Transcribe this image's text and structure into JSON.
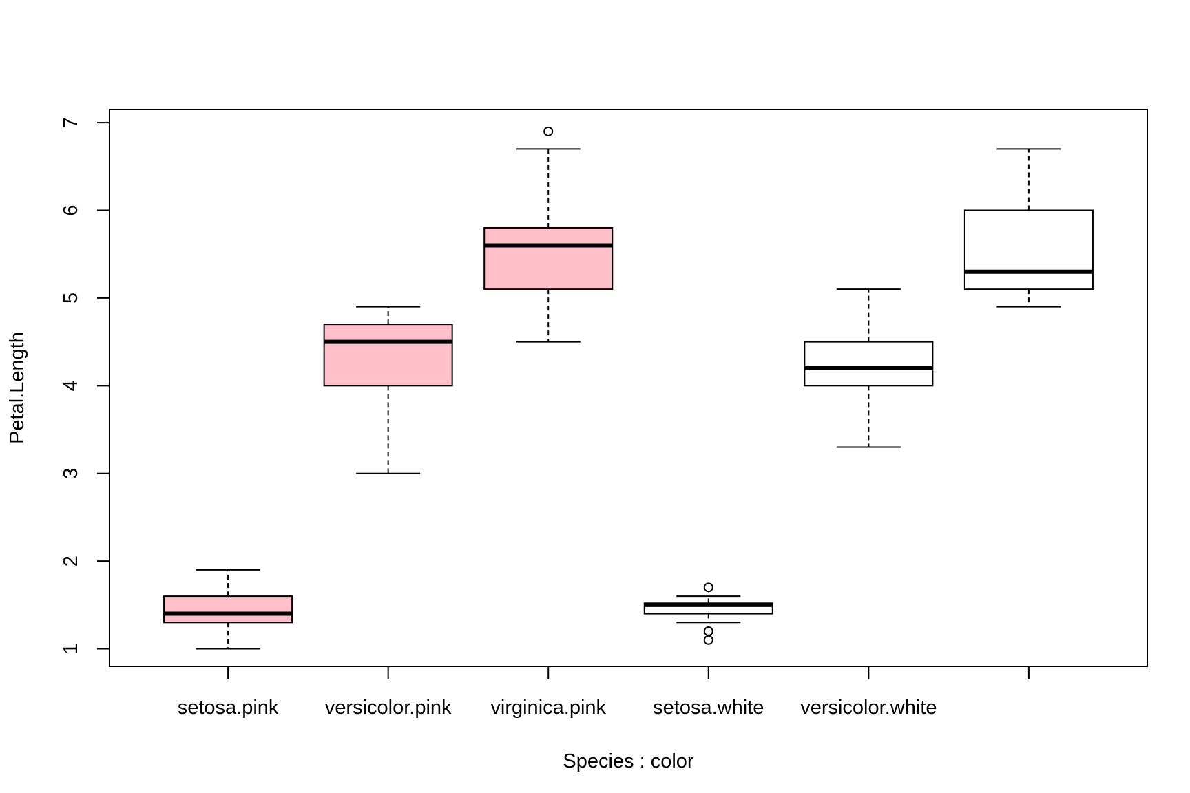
{
  "chart_data": {
    "type": "boxplot",
    "title": "",
    "xlabel": "Species : color",
    "ylabel": "Petal.Length",
    "ylim": [
      0.8,
      7.15
    ],
    "yticks": [
      1,
      2,
      3,
      4,
      5,
      6,
      7
    ],
    "grid": false,
    "legend": "none",
    "categories": [
      "setosa.pink",
      "versicolor.pink",
      "virginica.pink",
      "setosa.white",
      "versicolor.white",
      ""
    ],
    "boxes": [
      {
        "label": "setosa.pink",
        "fill": "#ffc0cb",
        "whisker_low": 1.0,
        "q1": 1.3,
        "median": 1.4,
        "q3": 1.6,
        "whisker_high": 1.9,
        "outliers": []
      },
      {
        "label": "versicolor.pink",
        "fill": "#ffc0cb",
        "whisker_low": 3.0,
        "q1": 4.0,
        "median": 4.5,
        "q3": 4.7,
        "whisker_high": 4.9,
        "outliers": []
      },
      {
        "label": "virginica.pink",
        "fill": "#ffc0cb",
        "whisker_low": 4.5,
        "q1": 5.1,
        "median": 5.6,
        "q3": 5.8,
        "whisker_high": 6.7,
        "outliers": [
          6.9
        ]
      },
      {
        "label": "setosa.white",
        "fill": "#ffffff",
        "whisker_low": 1.3,
        "q1": 1.4,
        "median": 1.5,
        "q3": 1.52,
        "whisker_high": 1.6,
        "outliers": [
          1.7,
          1.2,
          1.1
        ]
      },
      {
        "label": "versicolor.white",
        "fill": "#ffffff",
        "whisker_low": 3.3,
        "q1": 4.0,
        "median": 4.2,
        "q3": 4.5,
        "whisker_high": 5.1,
        "outliers": []
      },
      {
        "label": "",
        "fill": "#ffffff",
        "whisker_low": 4.9,
        "q1": 5.1,
        "median": 5.3,
        "q3": 6.0,
        "whisker_high": 6.7,
        "outliers": []
      }
    ],
    "colors": {
      "pink": "#ffc0cb",
      "white": "#ffffff",
      "line": "#000000"
    }
  }
}
